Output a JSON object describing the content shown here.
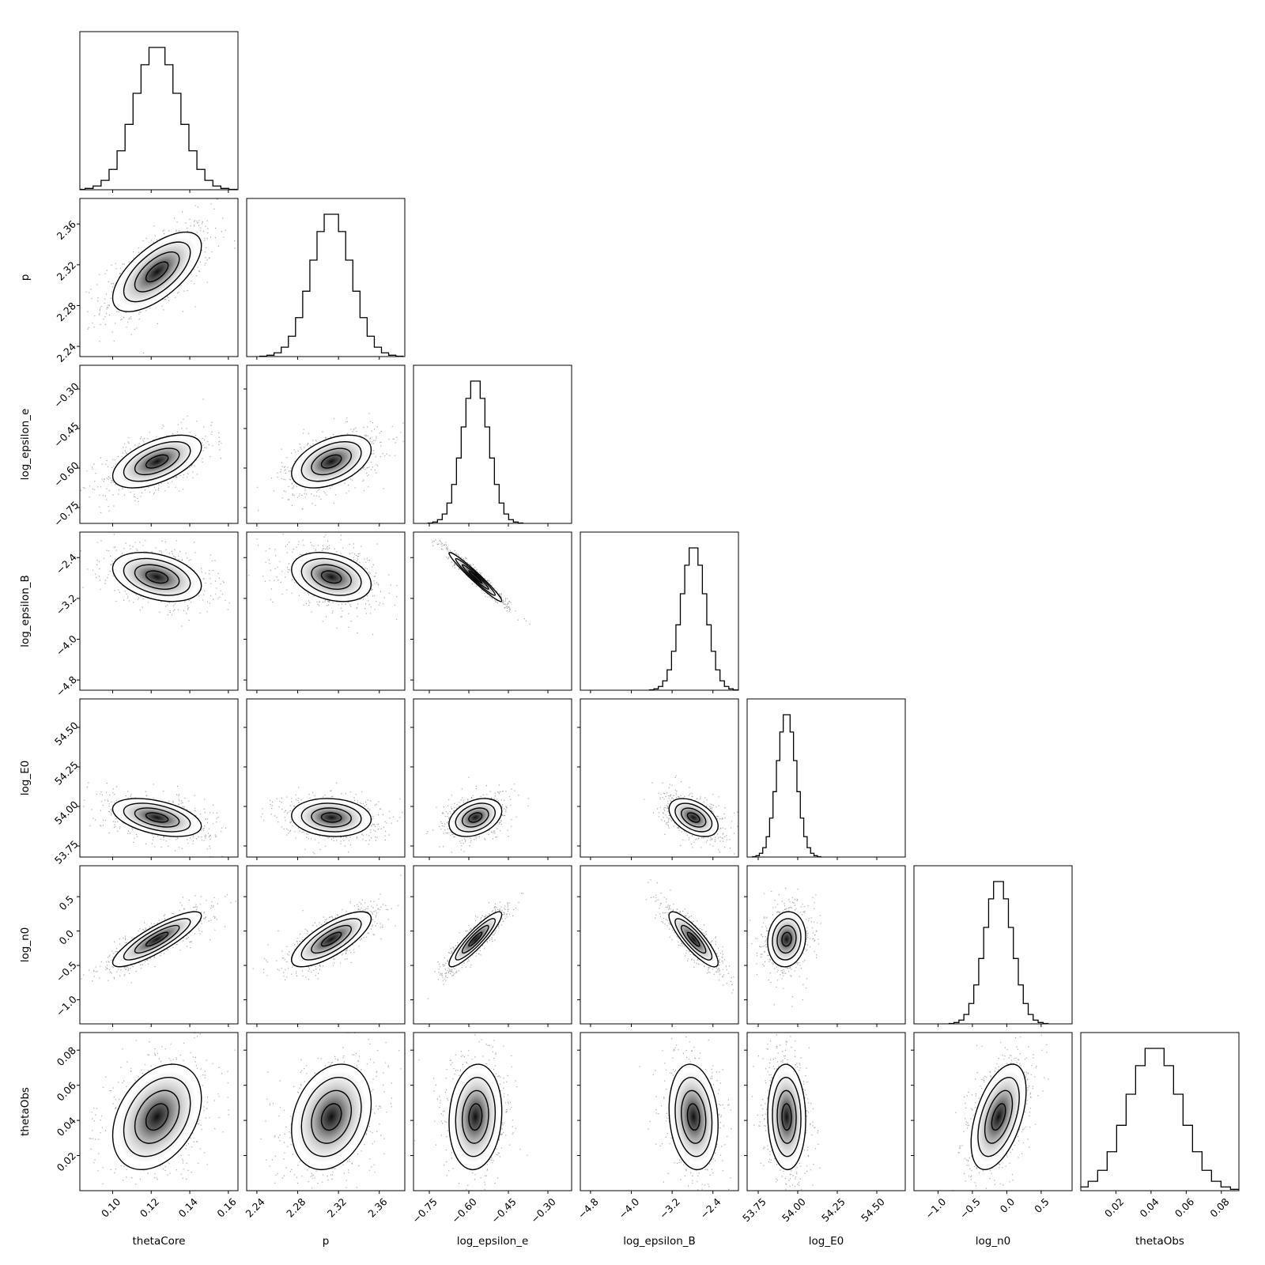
{
  "chart_data": {
    "type": "corner",
    "parameters": [
      {
        "name": "thetaCore",
        "mean": 0.123,
        "sd": 0.0115,
        "range": [
          0.083,
          0.165
        ],
        "ticks": [
          0.1,
          0.12,
          0.14,
          0.16
        ],
        "tick_labels": [
          "0.10",
          "0.12",
          "0.14",
          "0.16"
        ]
      },
      {
        "name": "p",
        "mean": 2.313,
        "sd": 0.0195,
        "range": [
          2.23,
          2.385
        ],
        "ticks": [
          2.24,
          2.28,
          2.32,
          2.36
        ],
        "tick_labels": [
          "2.24",
          "2.28",
          "2.32",
          "2.36"
        ]
      },
      {
        "name": "log_epsilon_e",
        "mean": -0.575,
        "sd": 0.05,
        "range": [
          -0.81,
          -0.21
        ],
        "ticks": [
          -0.75,
          -0.6,
          -0.45,
          -0.3
        ],
        "tick_labels": [
          "−0.75",
          "−0.60",
          "−0.45",
          "−0.30"
        ]
      },
      {
        "name": "log_epsilon_B",
        "mean": -2.78,
        "sd": 0.24,
        "range": [
          -5.0,
          -1.9
        ],
        "ticks": [
          -4.8,
          -4.0,
          -3.2,
          -2.4
        ],
        "tick_labels": [
          "−4.8",
          "−4.0",
          "−3.2",
          "−2.4"
        ]
      },
      {
        "name": "log_E0",
        "mean": 53.93,
        "sd": 0.06,
        "range": [
          53.68,
          54.68
        ],
        "ticks": [
          53.75,
          54.0,
          54.25,
          54.5
        ],
        "tick_labels": [
          "53.75",
          "54.00",
          "54.25",
          "54.50"
        ]
      },
      {
        "name": "log_n0",
        "mean": -0.12,
        "sd": 0.2,
        "range": [
          -1.35,
          0.95
        ],
        "ticks": [
          -1.0,
          -0.5,
          0.0,
          0.5
        ],
        "tick_labels": [
          "−1.0",
          "−0.5",
          "0.0",
          "0.5"
        ]
      },
      {
        "name": "thetaObs",
        "mean": 0.042,
        "sd": 0.015,
        "range": [
          0.0,
          0.09
        ],
        "ticks": [
          0.02,
          0.04,
          0.06,
          0.08
        ],
        "tick_labels": [
          "0.02",
          "0.04",
          "0.06",
          "0.08"
        ]
      }
    ],
    "correlations": [
      [
        1,
        0.65,
        0.55,
        -0.35,
        -0.45,
        0.85,
        0.35
      ],
      [
        0.65,
        1,
        0.45,
        -0.3,
        -0.1,
        0.75,
        0.25
      ],
      [
        0.55,
        0.45,
        1,
        -0.97,
        0.35,
        0.9,
        0.1
      ],
      [
        -0.35,
        -0.3,
        -0.97,
        1,
        -0.45,
        -0.85,
        -0.15
      ],
      [
        -0.45,
        -0.1,
        0.35,
        -0.45,
        1,
        0.1,
        -0.05
      ],
      [
        0.85,
        0.75,
        0.9,
        -0.85,
        0.1,
        1,
        0.5
      ],
      [
        0.35,
        0.25,
        0.1,
        -0.15,
        -0.05,
        0.5,
        1
      ]
    ],
    "contour_levels_sigma": [
      0.5,
      1.0,
      1.5,
      2.0
    ],
    "histogram_bins": 20,
    "grid": false,
    "legend": "none"
  }
}
